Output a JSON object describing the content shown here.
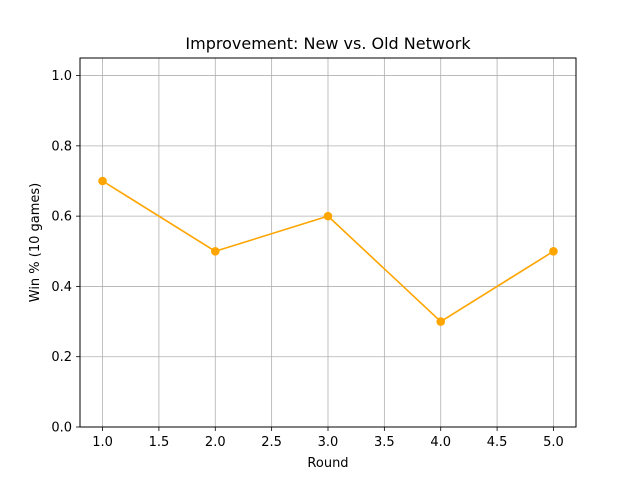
{
  "chart_data": {
    "type": "line",
    "title": "Improvement: New vs. Old Network",
    "xlabel": "Round",
    "ylabel": "Win % (10 games)",
    "xlim": [
      0.8,
      5.2
    ],
    "ylim": [
      0.0,
      1.05
    ],
    "xticks": [
      1.0,
      1.5,
      2.0,
      2.5,
      3.0,
      3.5,
      4.0,
      4.5,
      5.0
    ],
    "xtick_labels": [
      "1.0",
      "1.5",
      "2.0",
      "2.5",
      "3.0",
      "3.5",
      "4.0",
      "4.5",
      "5.0"
    ],
    "yticks": [
      0.0,
      0.2,
      0.4,
      0.6,
      0.8,
      1.0
    ],
    "ytick_labels": [
      "0.0",
      "0.2",
      "0.4",
      "0.6",
      "0.8",
      "1.0"
    ],
    "grid": true,
    "series": [
      {
        "color": "#ffa500",
        "marker": "circle",
        "x": [
          1,
          2,
          3,
          4,
          5
        ],
        "y": [
          0.7,
          0.5,
          0.6,
          0.3,
          0.5
        ]
      }
    ]
  }
}
